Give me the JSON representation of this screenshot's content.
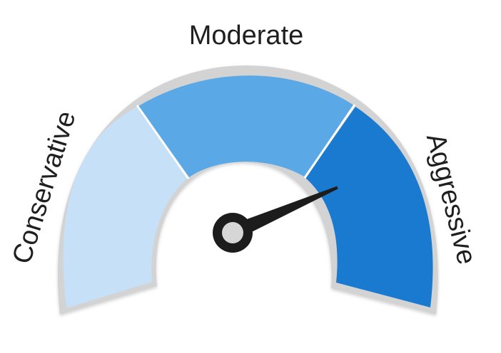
{
  "gauge": {
    "labels": {
      "left": "Conservative",
      "top": "Moderate",
      "right": "Aggressive"
    },
    "segments": [
      {
        "name": "Conservative",
        "color": "#c6e0f7"
      },
      {
        "name": "Moderate",
        "color": "#5aa8e6"
      },
      {
        "name": "Aggressive",
        "color": "#1a7acf"
      }
    ],
    "needle_level": 0.87,
    "colors": {
      "frame": "#d3d3d3",
      "needle": "#1c1c1c",
      "hub_center": "#d6d6d6"
    }
  }
}
